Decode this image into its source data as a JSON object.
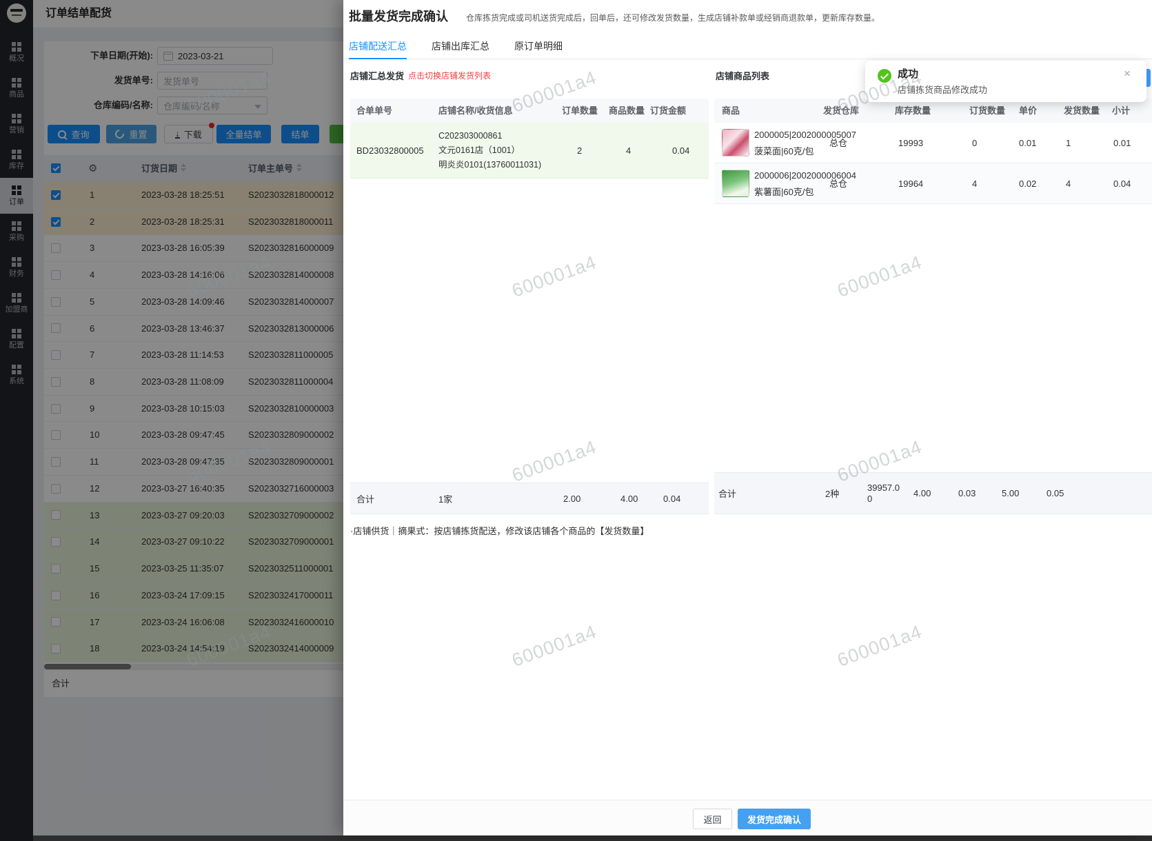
{
  "watermark": {
    "text": "600001a4"
  },
  "sidebar": {
    "items": [
      {
        "label": "概况",
        "active": false
      },
      {
        "label": "商品",
        "active": false
      },
      {
        "label": "营销",
        "active": false
      },
      {
        "label": "库存",
        "active": false
      },
      {
        "label": "订单",
        "active": true
      },
      {
        "label": "采购",
        "active": false
      },
      {
        "label": "财务",
        "active": false
      },
      {
        "label": "加盟商",
        "active": false
      },
      {
        "label": "配置",
        "active": false
      },
      {
        "label": "系统",
        "active": false
      }
    ]
  },
  "page": {
    "title": "订单结单配货",
    "filters": {
      "order_date": {
        "label": "下单日期(开始):",
        "value": "2023-03-21"
      },
      "ship_no": {
        "label": "发货单号:",
        "placeholder": "发货单号"
      },
      "warehouse": {
        "label": "仓库编码/名称:",
        "placeholder": "仓库编码/名称"
      }
    },
    "buttons": {
      "query": "查询",
      "reset": "重置",
      "download": "下载",
      "settle_all": "全量结单",
      "settle": "结单"
    },
    "table": {
      "columns": {
        "date": "订货日期",
        "order_no": "订单主单号"
      },
      "rows": [
        {
          "idx": "1",
          "date": "2023-03-28 18:25:51",
          "no": "S2023032818000012",
          "checked": true,
          "hl": "tan"
        },
        {
          "idx": "2",
          "date": "2023-03-28 18:25:31",
          "no": "S2023032818000011",
          "checked": true,
          "hl": "tan"
        },
        {
          "idx": "3",
          "date": "2023-03-28 16:05:39",
          "no": "S2023032816000009",
          "checked": false,
          "hl": ""
        },
        {
          "idx": "4",
          "date": "2023-03-28 14:16:06",
          "no": "S2023032814000008",
          "checked": false,
          "hl": ""
        },
        {
          "idx": "5",
          "date": "2023-03-28 14:09:46",
          "no": "S2023032814000007",
          "checked": false,
          "hl": ""
        },
        {
          "idx": "6",
          "date": "2023-03-28 13:46:37",
          "no": "S2023032813000006",
          "checked": false,
          "hl": ""
        },
        {
          "idx": "7",
          "date": "2023-03-28 11:14:53",
          "no": "S2023032811000005",
          "checked": false,
          "hl": ""
        },
        {
          "idx": "8",
          "date": "2023-03-28 11:08:09",
          "no": "S2023032811000004",
          "checked": false,
          "hl": ""
        },
        {
          "idx": "9",
          "date": "2023-03-28 10:15:03",
          "no": "S2023032810000003",
          "checked": false,
          "hl": ""
        },
        {
          "idx": "10",
          "date": "2023-03-28 09:47:45",
          "no": "S2023032809000002",
          "checked": false,
          "hl": ""
        },
        {
          "idx": "11",
          "date": "2023-03-28 09:47:35",
          "no": "S2023032809000001",
          "checked": false,
          "hl": ""
        },
        {
          "idx": "12",
          "date": "2023-03-27 16:40:35",
          "no": "S2023032716000003",
          "checked": false,
          "hl": ""
        },
        {
          "idx": "13",
          "date": "2023-03-27 09:20:03",
          "no": "S2023032709000002",
          "checked": false,
          "hl": "green"
        },
        {
          "idx": "14",
          "date": "2023-03-27 09:10:22",
          "no": "S2023032709000001",
          "checked": false,
          "hl": "green"
        },
        {
          "idx": "15",
          "date": "2023-03-25 11:35:07",
          "no": "S2023032511000001",
          "checked": false,
          "hl": "green"
        },
        {
          "idx": "16",
          "date": "2023-03-24 17:09:15",
          "no": "S2023032417000011",
          "checked": false,
          "hl": "green"
        },
        {
          "idx": "17",
          "date": "2023-03-24 16:06:08",
          "no": "S2023032416000010",
          "checked": false,
          "hl": "green"
        },
        {
          "idx": "18",
          "date": "2023-03-24 14:54:19",
          "no": "S2023032414000009",
          "checked": false,
          "hl": "green"
        }
      ],
      "summary_label": "合计"
    }
  },
  "drawer": {
    "title": "批量发货完成确认",
    "subtitle": "仓库拣货完成或司机送货完成后，回单后，还可修改发货数量，生成店铺补款单或经销商退款单，更新库存数量。",
    "tabs": [
      {
        "label": "店铺配送汇总",
        "active": true
      },
      {
        "label": "店铺出库汇总",
        "active": false
      },
      {
        "label": "原订单明细",
        "active": false
      }
    ],
    "shipment_panel": {
      "title": "店铺汇总发货",
      "hint": "点击切换店铺发货列表",
      "columns": [
        "合单单号",
        "店铺名称/收货信息",
        "订单数量",
        "商品数量",
        "订货金额"
      ],
      "row": {
        "merge_no": "BD23032800005",
        "info_lines": [
          "C202303000861",
          "文元0161店（1001）",
          "明炎炎0101(13760011031)"
        ],
        "order_qty": "2",
        "goods_qty": "4",
        "amount": "0.04"
      },
      "summary": {
        "label": "合计",
        "shops": "1家",
        "order_qty": "2.00",
        "goods_qty": "4.00",
        "amount": "0.04"
      }
    },
    "products_panel": {
      "title": "店铺商品列表",
      "columns": [
        "商品",
        "发货仓库",
        "库存数量",
        "订货数量",
        "单价",
        "发货数量",
        "小计"
      ],
      "rows": [
        {
          "code": "2000005|2002000005007",
          "name": "菠菜面|60克/包",
          "warehouse": "总仓",
          "stock": "19993",
          "ordered": "0",
          "price": "0.01",
          "ship_qty": "1",
          "subtotal": "0.01",
          "thumb": "pink"
        },
        {
          "code": "2000006|2002000006004",
          "name": "紫薯面|60克/包",
          "warehouse": "总仓",
          "stock": "19964",
          "ordered": "4",
          "price": "0.02",
          "ship_qty": "4",
          "subtotal": "0.04",
          "thumb": "green"
        }
      ],
      "summary": {
        "label": "合计",
        "kinds": "2种",
        "stock": "39957.00",
        "ordered": "4.00",
        "price": "0.03",
        "ship_qty": "5.00",
        "subtotal": "0.05"
      }
    },
    "note": "·店铺供货｜摘果式：按店铺拣货配送，修改该店铺各个商品的【发货数量】",
    "footer": {
      "back": "返回",
      "confirm": "发货完成确认"
    }
  },
  "toast": {
    "title": "成功",
    "message": "店铺拣货商品修改成功",
    "close": "×"
  }
}
